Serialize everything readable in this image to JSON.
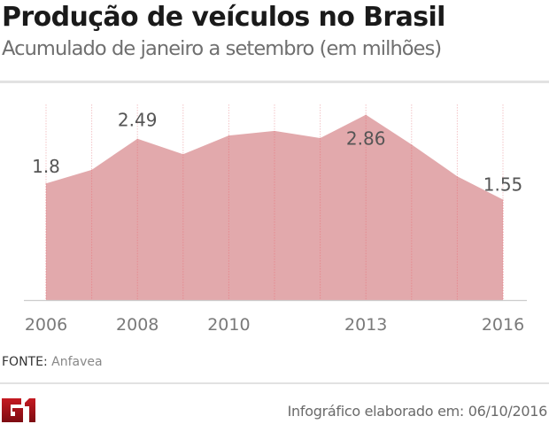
{
  "header": {
    "title": "Produção de veículos no Brasil",
    "subtitle": "Acumulado de janeiro a setembro (em milhões)"
  },
  "footer": {
    "source_label": "FONTE:",
    "source_value": "Anfavea",
    "credit": "Infográfico elaborado em: 06/10/2016",
    "logo_text": "G1"
  },
  "colors": {
    "area_fill": "#e2a9ac",
    "gridline": "#e58a90",
    "axis": "#cccccc",
    "logo": "#a3141c"
  },
  "chart_data": {
    "type": "area",
    "title": "Produção de veículos no Brasil",
    "subtitle": "Acumulado de janeiro a setembro (em milhões)",
    "xlabel": "",
    "ylabel": "",
    "x": [
      2006,
      2007,
      2008,
      2009,
      2010,
      2011,
      2012,
      2013,
      2014,
      2015,
      2016
    ],
    "values": [
      1.8,
      2.01,
      2.49,
      2.25,
      2.54,
      2.61,
      2.5,
      2.86,
      2.4,
      1.91,
      1.55
    ],
    "ylim": [
      0,
      3.0
    ],
    "tick_labels": [
      "2006",
      "2008",
      "2010",
      "2013",
      "2016"
    ],
    "tick_years": [
      2006,
      2008,
      2010,
      2013,
      2016
    ],
    "data_labels": [
      {
        "year": 2006,
        "text": "1.8"
      },
      {
        "year": 2008,
        "text": "2.49"
      },
      {
        "year": 2013,
        "text": "2.86"
      },
      {
        "year": 2016,
        "text": "1.55"
      }
    ],
    "grid": "vertical dotted per year",
    "legend": "none"
  }
}
